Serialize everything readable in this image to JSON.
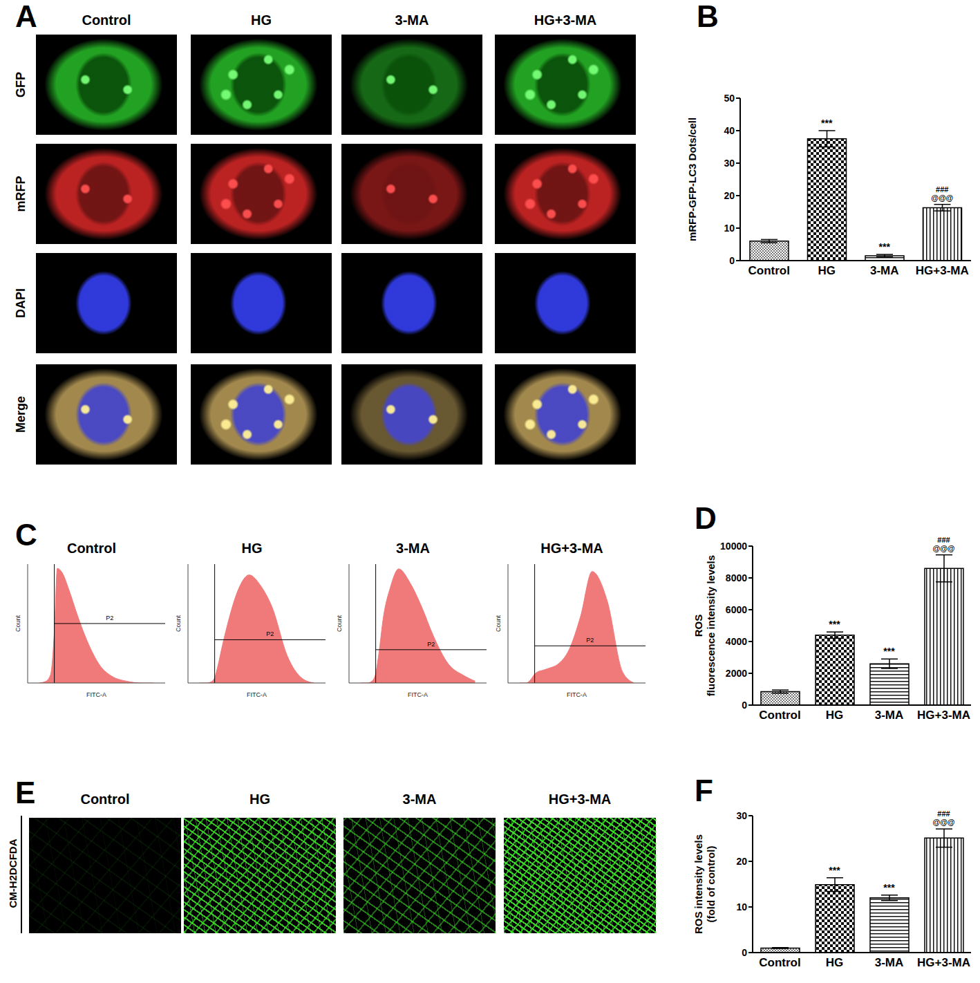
{
  "panel_A": {
    "label": "A",
    "columns": [
      "Control",
      "HG",
      "3-MA",
      "HG+3-MA"
    ],
    "rows": [
      "GFP",
      "mRFP",
      "DAPI",
      "Merge"
    ]
  },
  "panel_C": {
    "label": "C",
    "charts": [
      {
        "type": "area",
        "title": "Control",
        "x": [
          100,
          150,
          200,
          250,
          300,
          400,
          600,
          1000,
          2000,
          4000,
          8000,
          20000,
          50000,
          100000
        ],
        "values": [
          0,
          2,
          10,
          60,
          135,
          130,
          110,
          80,
          45,
          20,
          8,
          2,
          0,
          0
        ],
        "xlim": [
          50,
          200000
        ],
        "ylim": [
          0,
          140
        ],
        "log": "x",
        "tick_labels": false,
        "color": "#f07a7a",
        "xlabel": "FITC-A",
        "ylabel": "Count",
        "gate": {
          "label": "P2",
          "x": 250,
          "y": 70
        }
      },
      {
        "type": "area",
        "title": "HG",
        "x": [
          100,
          150,
          200,
          250,
          300,
          400,
          600,
          1000,
          2000,
          4000,
          8000,
          20000,
          50000,
          100000
        ],
        "values": [
          0,
          0,
          1,
          5,
          15,
          35,
          60,
          85,
          100,
          90,
          70,
          25,
          4,
          0
        ],
        "xlim": [
          50,
          200000
        ],
        "ylim": [
          0,
          110
        ],
        "log": "x",
        "tick_labels": false,
        "color": "#f07a7a",
        "xlabel": "FITC-A",
        "ylabel": "Count",
        "gate": {
          "label": "P2",
          "x": 250,
          "y": 40
        }
      },
      {
        "type": "area",
        "title": "3-MA",
        "x": [
          100,
          150,
          200,
          250,
          300,
          400,
          600,
          1000,
          2000,
          4000,
          8000,
          20000,
          50000,
          100000
        ],
        "values": [
          0,
          0,
          2,
          10,
          30,
          70,
          100,
          120,
          105,
          80,
          50,
          20,
          8,
          2
        ],
        "xlim": [
          50,
          200000
        ],
        "ylim": [
          0,
          125
        ],
        "log": "x",
        "tick_labels": false,
        "color": "#f07a7a",
        "xlabel": "FITC-A",
        "ylabel": "Count",
        "gate": {
          "label": "P2",
          "x": 250,
          "y": 35
        }
      },
      {
        "type": "area",
        "title": "HG+3-MA",
        "x": [
          100,
          150,
          200,
          250,
          300,
          400,
          600,
          1000,
          2000,
          4000,
          8000,
          20000,
          50000,
          100000
        ],
        "values": [
          0,
          0,
          5,
          12,
          15,
          17,
          20,
          25,
          45,
          90,
          150,
          110,
          15,
          0
        ],
        "xlim": [
          50,
          200000
        ],
        "ylim": [
          0,
          160
        ],
        "log": "x",
        "tick_labels": false,
        "color": "#f07a7a",
        "xlabel": "FITC-A",
        "ylabel": "Count",
        "gate": {
          "label": "P2",
          "x": 250,
          "y": 50
        }
      }
    ]
  },
  "panel_E": {
    "label": "E",
    "row_label": "CM-H2DCFDA",
    "columns": [
      "Control",
      "HG",
      "3-MA",
      "HG+3-MA"
    ]
  },
  "chart_data": [
    {
      "label": "B",
      "type": "bar",
      "ylabel": [
        "mRFP-GFP-LC3 Dots/cell"
      ],
      "categories": [
        "Control",
        "HG",
        "3-MA",
        "HG+3-MA"
      ],
      "values": [
        6,
        37.5,
        1.5,
        16.3
      ],
      "errors": [
        0.5,
        2.5,
        0.4,
        1
      ],
      "color": "#000000",
      "ylim": [
        0,
        50
      ],
      "yticks": [
        0,
        10,
        20,
        30,
        40,
        50
      ],
      "annotations": [
        {
          "category": "HG",
          "lines": [
            "***"
          ]
        },
        {
          "category": "3-MA",
          "lines": [
            "***"
          ]
        },
        {
          "category": "HG+3-MA",
          "lines": [
            "###",
            "@@@"
          ]
        }
      ]
    },
    {
      "label": "D",
      "type": "bar",
      "ylabel": [
        "ROS",
        "fluorescence intensity levels"
      ],
      "categories": [
        "Control",
        "HG",
        "3-MA",
        "HG+3-MA"
      ],
      "values": [
        850,
        4400,
        2600,
        8600
      ],
      "errors": [
        100,
        200,
        300,
        850
      ],
      "color": "#000000",
      "ylim": [
        0,
        10000
      ],
      "yticks": [
        0,
        2000,
        4000,
        6000,
        8000,
        10000
      ],
      "annotations": [
        {
          "category": "HG",
          "lines": [
            "***"
          ]
        },
        {
          "category": "3-MA",
          "lines": [
            "***"
          ]
        },
        {
          "category": "HG+3-MA",
          "lines": [
            "###",
            "@@@"
          ]
        }
      ]
    },
    {
      "label": "F",
      "type": "bar",
      "ylabel": [
        "ROS intensity levels",
        "(fold of control)"
      ],
      "categories": [
        "Control",
        "HG",
        "3-MA",
        "HG+3-MA"
      ],
      "values": [
        1,
        14.9,
        12,
        25.1
      ],
      "errors": [
        0.1,
        1.5,
        0.6,
        2
      ],
      "color": "#000000",
      "ylim": [
        0,
        30
      ],
      "yticks": [
        0,
        10,
        20,
        30
      ],
      "annotations": [
        {
          "category": "HG",
          "lines": [
            "***"
          ]
        },
        {
          "category": "3-MA",
          "lines": [
            "***"
          ]
        },
        {
          "category": "HG+3-MA",
          "lines": [
            "###",
            "@@@"
          ]
        }
      ]
    }
  ]
}
